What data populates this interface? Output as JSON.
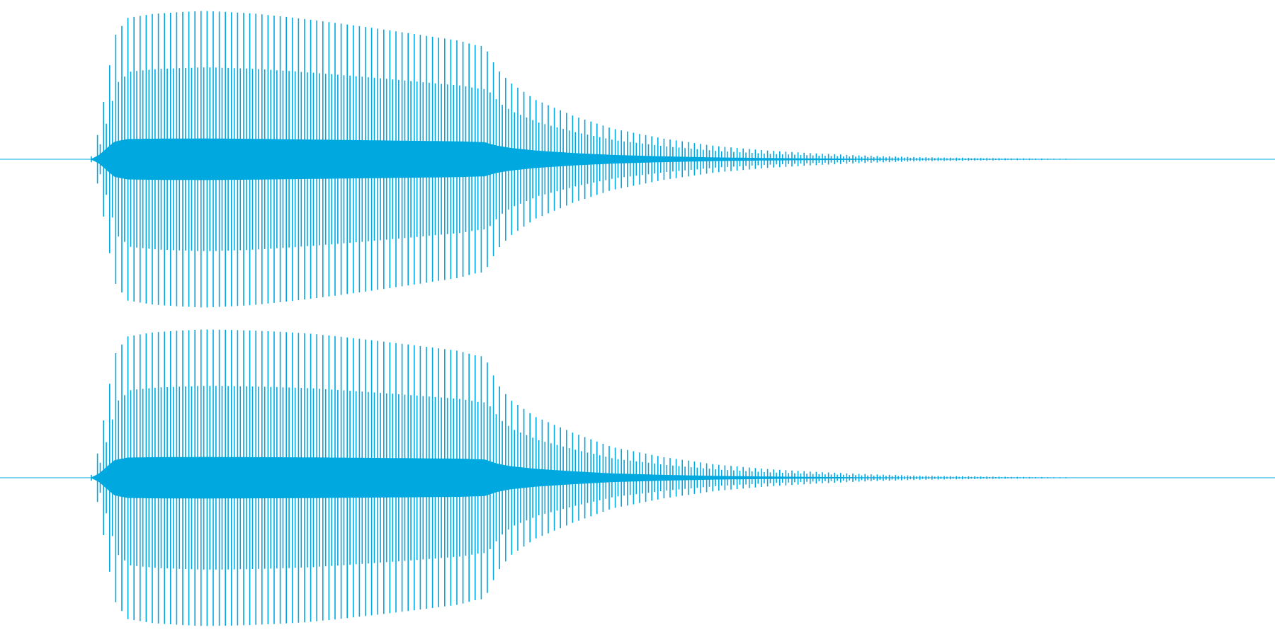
{
  "colors": {
    "background": "#ffffff",
    "waveform": "#00a8e0"
  },
  "chart_data": {
    "type": "line",
    "title": "",
    "xlabel": "",
    "ylabel": "",
    "ylim": [
      -1,
      1
    ],
    "grid": false,
    "legend": "none",
    "x_range": [
      0,
      1
    ],
    "channels": [
      {
        "envelope": {
          "x": [
            0.0,
            0.071,
            0.075,
            0.078,
            0.084,
            0.09,
            0.1,
            0.12,
            0.16,
            0.2,
            0.24,
            0.28,
            0.32,
            0.36,
            0.38,
            0.39,
            0.4,
            0.42,
            0.45,
            0.48,
            0.52,
            0.56,
            0.6,
            0.64,
            0.68,
            0.72,
            0.76,
            0.8,
            0.84,
            0.845,
            1.0
          ],
          "amplitude": [
            0.0,
            0.0,
            0.12,
            0.22,
            0.55,
            0.85,
            0.97,
            0.99,
            1.0,
            0.98,
            0.95,
            0.92,
            0.89,
            0.86,
            0.82,
            0.65,
            0.55,
            0.42,
            0.3,
            0.21,
            0.14,
            0.09,
            0.06,
            0.04,
            0.025,
            0.015,
            0.01,
            0.006,
            0.003,
            0.0,
            0.0
          ]
        }
      },
      {
        "envelope": {
          "x": [
            0.0,
            0.071,
            0.075,
            0.078,
            0.084,
            0.09,
            0.1,
            0.12,
            0.16,
            0.2,
            0.24,
            0.28,
            0.32,
            0.36,
            0.38,
            0.39,
            0.4,
            0.42,
            0.45,
            0.48,
            0.52,
            0.56,
            0.6,
            0.64,
            0.68,
            0.72,
            0.76,
            0.8,
            0.84,
            0.845,
            1.0
          ],
          "amplitude": [
            0.0,
            0.0,
            0.12,
            0.22,
            0.55,
            0.85,
            0.97,
            0.99,
            1.0,
            0.99,
            0.98,
            0.96,
            0.94,
            0.92,
            0.88,
            0.68,
            0.56,
            0.43,
            0.31,
            0.21,
            0.14,
            0.09,
            0.06,
            0.04,
            0.025,
            0.015,
            0.01,
            0.006,
            0.003,
            0.0,
            0.0
          ]
        }
      }
    ]
  }
}
